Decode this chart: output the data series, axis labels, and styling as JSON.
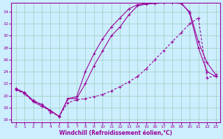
{
  "xlabel": "Windchill (Refroidissement éolien,°C)",
  "bg_color": "#cceeff",
  "grid_color": "#99ccbb",
  "line_color": "#990099",
  "ylim": [
    15.5,
    35.5
  ],
  "xlim": [
    -0.5,
    23.5
  ],
  "yticks": [
    16,
    18,
    20,
    22,
    24,
    26,
    28,
    30,
    32,
    34
  ],
  "xticks": [
    0,
    1,
    2,
    3,
    4,
    5,
    6,
    7,
    8,
    9,
    10,
    11,
    12,
    13,
    14,
    15,
    16,
    17,
    18,
    19,
    20,
    21,
    22,
    23
  ],
  "line1_x": [
    0,
    1,
    2,
    3,
    4,
    5,
    6,
    7,
    8,
    9,
    10,
    11,
    12,
    13,
    14,
    15,
    16,
    17,
    18,
    19,
    20,
    21,
    22,
    23
  ],
  "line1_y": [
    21.0,
    20.5,
    19.0,
    18.2,
    17.5,
    16.5,
    19.5,
    19.5,
    22.0,
    25.0,
    27.5,
    30.0,
    31.5,
    33.5,
    35.0,
    35.3,
    35.4,
    35.5,
    35.5,
    35.4,
    34.0,
    29.0,
    25.5,
    23.5
  ],
  "line2_x": [
    0,
    1,
    2,
    3,
    4,
    5,
    6,
    7,
    8,
    9,
    10,
    11,
    12,
    13,
    14,
    15,
    16,
    17,
    18,
    19,
    20,
    21,
    22,
    23
  ],
  "line2_y": [
    21.2,
    20.5,
    19.2,
    18.5,
    17.5,
    16.5,
    19.5,
    19.8,
    24.0,
    27.0,
    29.5,
    31.5,
    33.0,
    34.5,
    35.2,
    35.4,
    35.5,
    35.6,
    35.6,
    35.6,
    33.8,
    28.0,
    24.0,
    23.2
  ],
  "line3_x": [
    0,
    1,
    2,
    3,
    4,
    5,
    6,
    7,
    8,
    9,
    10,
    11,
    12,
    13,
    14,
    15,
    16,
    17,
    18,
    19,
    20,
    21,
    22,
    23
  ],
  "line3_y": [
    21.0,
    20.3,
    19.0,
    18.5,
    17.2,
    16.6,
    18.8,
    19.3,
    19.5,
    19.8,
    20.2,
    20.8,
    21.5,
    22.3,
    23.2,
    24.5,
    26.0,
    27.5,
    29.0,
    30.5,
    32.0,
    33.0,
    23.0,
    23.3
  ]
}
